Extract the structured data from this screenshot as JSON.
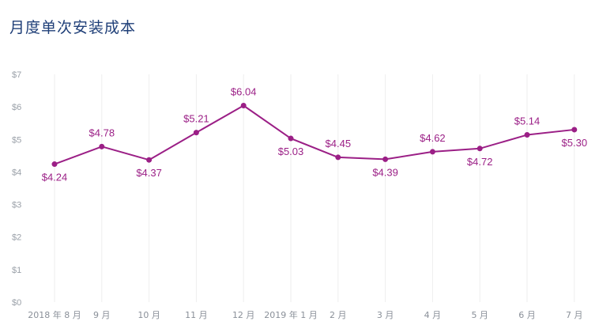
{
  "chart_data": {
    "type": "line",
    "title": "月度单次安装成本",
    "categories": [
      "2018 年 8 月",
      "9 月",
      "10 月",
      "11 月",
      "12 月",
      "2019 年 1 月",
      "2 月",
      "3 月",
      "4 月",
      "5 月",
      "6 月",
      "7 月"
    ],
    "series": [
      {
        "values": [
          4.24,
          4.78,
          4.37,
          5.21,
          6.04,
          5.03,
          4.45,
          4.39,
          4.62,
          4.72,
          5.14,
          5.3
        ]
      }
    ],
    "data_labels": [
      "$4.24",
      "$4.78",
      "$4.37",
      "$5.21",
      "$6.04",
      "$5.03",
      "$4.45",
      "$4.39",
      "$4.62",
      "$4.72",
      "$5.14",
      "$5.30"
    ],
    "label_positions": [
      "below",
      "above",
      "below",
      "above",
      "above",
      "below",
      "above",
      "below",
      "above",
      "below",
      "above",
      "below"
    ],
    "y_ticks": [
      "$0",
      "$1",
      "$2",
      "$3",
      "$4",
      "$5",
      "$6",
      "$7"
    ],
    "ylim": [
      0,
      7
    ],
    "grid": "vertical",
    "line_color": "#9b1f86"
  }
}
